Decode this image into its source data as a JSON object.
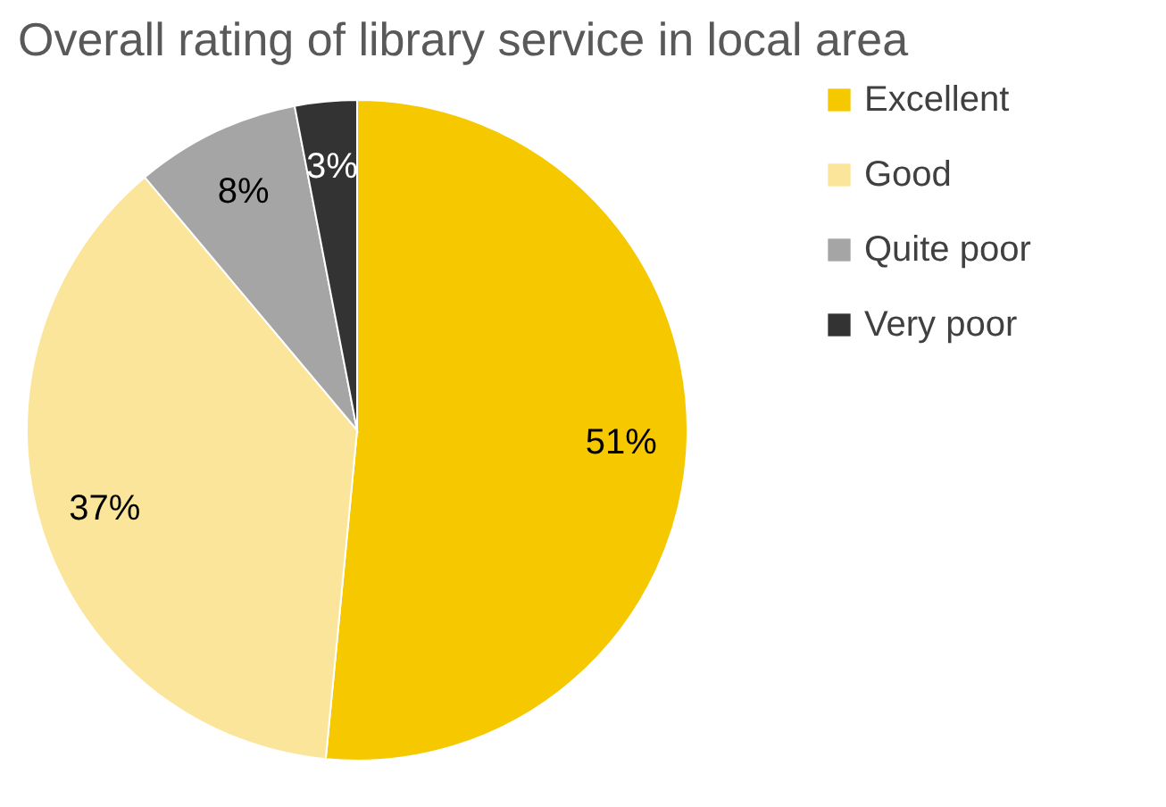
{
  "chart_data": {
    "type": "pie",
    "title": "Overall rating of library service in local area",
    "categories": [
      "Excellent",
      "Good",
      "Quite poor",
      "Very poor"
    ],
    "values": [
      51,
      37,
      8,
      3
    ],
    "colors": [
      "#f5c800",
      "#fbe59a",
      "#a5a5a5",
      "#333333"
    ],
    "value_labels": [
      "51%",
      "37%",
      "8%",
      "3%"
    ],
    "legend": "right"
  }
}
